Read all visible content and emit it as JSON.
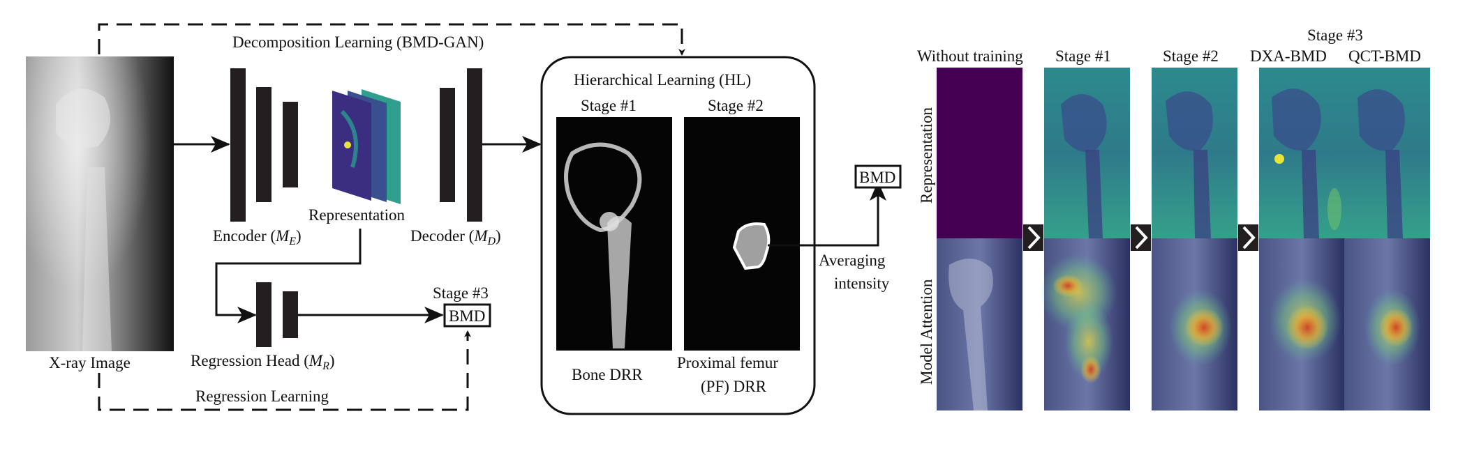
{
  "left": {
    "decomposition_label": "Decomposition Learning (BMD-GAN)",
    "xray_label": "X-ray Image",
    "encoder_label": "Encoder (",
    "encoder_sym": "M",
    "encoder_sub": "E",
    "representation_label": "Representation",
    "decoder_label": "Decoder (",
    "decoder_sym": "M",
    "decoder_sub": "D",
    "close_paren": ")",
    "regression_head_label": "Regression Head (",
    "regression_sym": "M",
    "regression_sub": "R",
    "stage3_label": "Stage #3",
    "bmd_label": "BMD",
    "regression_learning_label": "Regression Learning"
  },
  "hl": {
    "title": "Hierarchical Learning (HL)",
    "stage1": "Stage #1",
    "stage2": "Stage #2",
    "bone_drr": "Bone DRR",
    "pf_drr_line1": "Proximal femur",
    "pf_drr_line2": "(PF) DRR",
    "bmd_label": "BMD",
    "averaging_line1": "Averaging",
    "averaging_line2": "intensity"
  },
  "right": {
    "col_without": "Without training",
    "col_stage1": "Stage #1",
    "col_stage2": "Stage #2",
    "col_stage3": "Stage #3",
    "col_dxa": "DXA-BMD",
    "col_qct": "QCT-BMD",
    "row_representation": "Representation",
    "row_attention": "Model Attention"
  },
  "colors": {
    "line": "#111111",
    "viridis_teal": "#2a8a8a",
    "viridis_purple": "#3b1f6e",
    "flat_purple": "#440154",
    "attention_hot": "#d23a20",
    "attention_yellow": "#e8d440"
  }
}
